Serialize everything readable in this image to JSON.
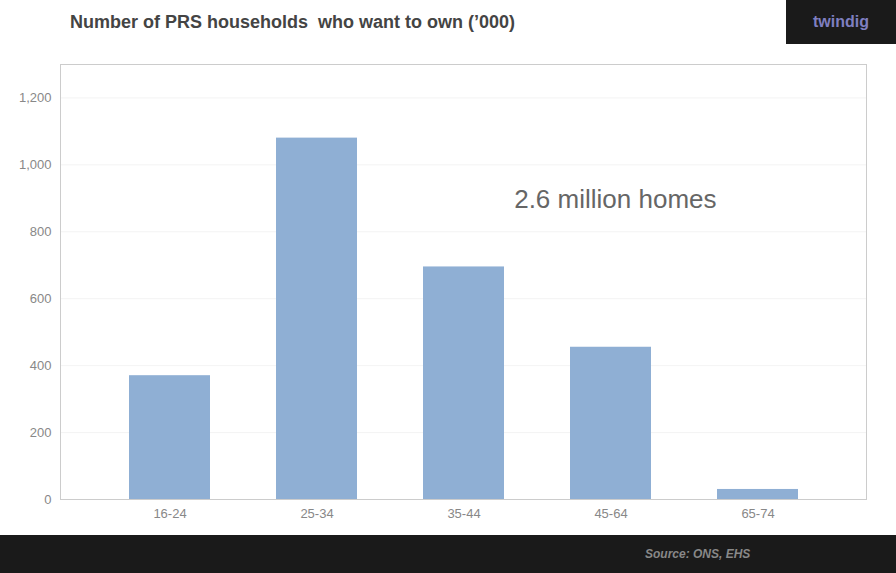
{
  "chart_data": {
    "type": "bar",
    "title": "Number of PRS households  who want to own (’000)",
    "categories": [
      "16-24",
      "25-34",
      "35-44",
      "45-64",
      "65-74"
    ],
    "values": [
      370,
      1080,
      695,
      455,
      30
    ],
    "color": "#8FAFD4",
    "ylim": [
      0,
      1300
    ],
    "yticks": [
      0,
      200,
      400,
      600,
      800,
      {
        "value": 1000,
        "label": "1,000"
      },
      {
        "value": 1200,
        "label": "1,200"
      }
    ],
    "grid": true,
    "annotations": [
      "2.6 million homes"
    ],
    "source": "Source: ONS, EHS",
    "logo": "twindig"
  }
}
